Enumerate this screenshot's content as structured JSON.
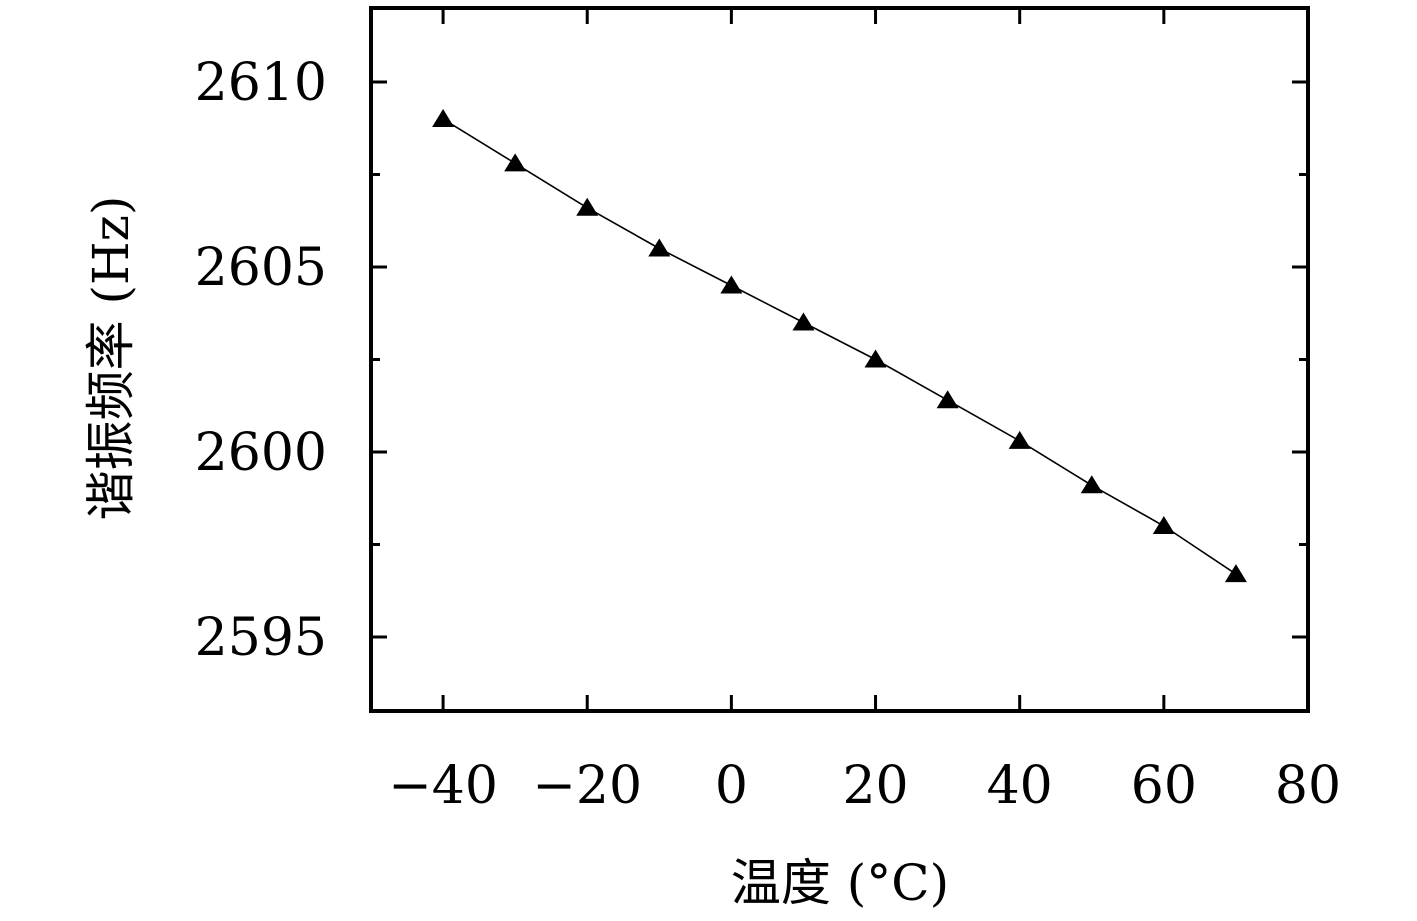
{
  "chart_data": {
    "type": "line",
    "title": "",
    "xlabel": "温度 (°C)",
    "ylabel": "谐振频率 (Hz)",
    "xlim": [
      -50,
      80
    ],
    "ylim": [
      2593,
      2612
    ],
    "x_ticks": [
      -40,
      -20,
      0,
      20,
      40,
      60,
      80
    ],
    "x_tick_labels": [
      "−40",
      "−20",
      "0",
      "20",
      "40",
      "60",
      "80"
    ],
    "y_ticks": [
      2595,
      2600,
      2605,
      2610
    ],
    "y_tick_labels": [
      "2595",
      "2600",
      "2605",
      "2610"
    ],
    "y_minor_ticks": [
      2597.5,
      2602.5,
      2607.5
    ],
    "grid": false,
    "legend": "none",
    "series": [
      {
        "marker": "triangle",
        "color": "#000000",
        "x": [
          -40,
          -30,
          -20,
          -10,
          0,
          10,
          20,
          30,
          40,
          50,
          60,
          70
        ],
        "y": [
          2609.0,
          2607.8,
          2606.6,
          2605.5,
          2604.5,
          2603.5,
          2602.5,
          2601.4,
          2600.3,
          2599.1,
          2598.0,
          2596.7
        ]
      }
    ]
  }
}
